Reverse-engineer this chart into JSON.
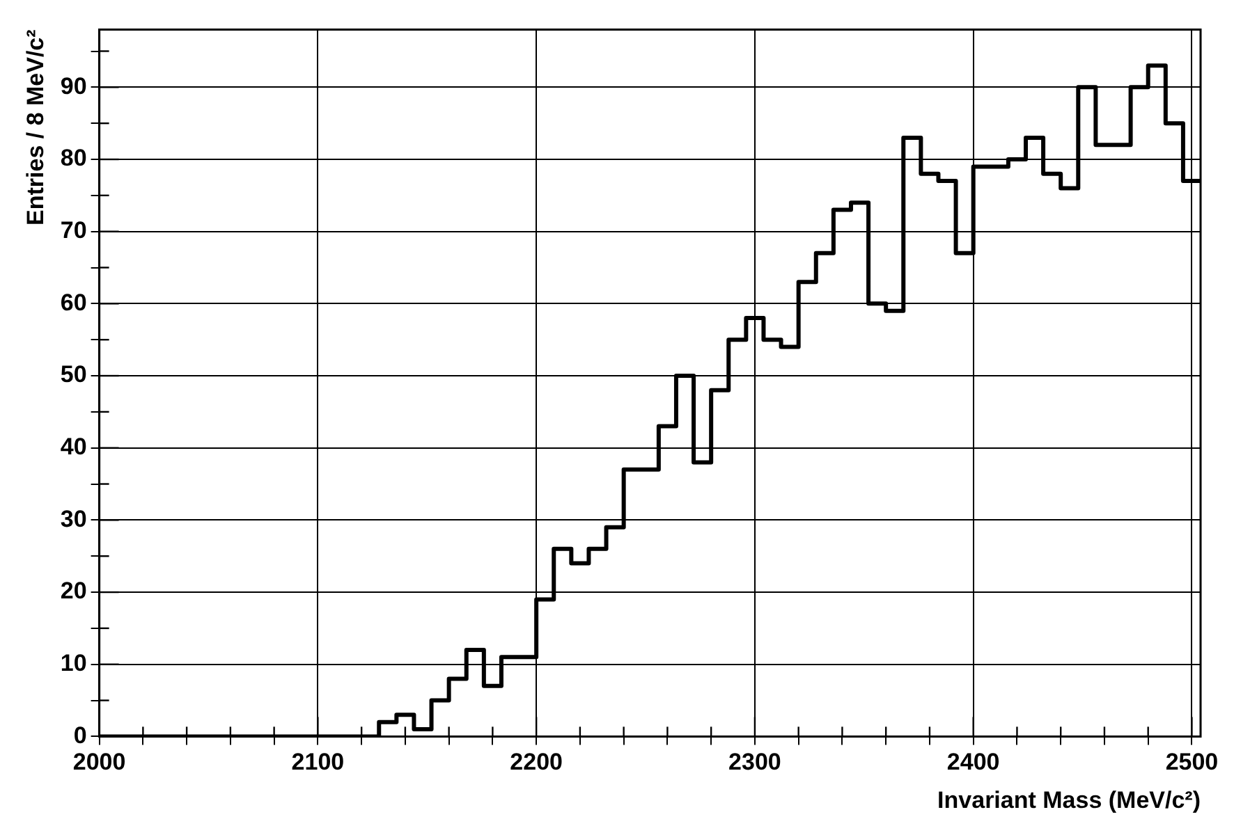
{
  "chart_data": {
    "type": "histogram",
    "xlabel": "Invariant Mass (MeV/c²)",
    "ylabel": "Entries / 8 MeV/c²",
    "bins": [
      2000,
      2008,
      2016,
      2024,
      2032,
      2040,
      2048,
      2056,
      2064,
      2072,
      2080,
      2088,
      2096,
      2104,
      2112,
      2120,
      2128,
      2136,
      2144,
      2152,
      2160,
      2168,
      2176,
      2184,
      2192,
      2200,
      2208,
      2216,
      2224,
      2232,
      2240,
      2248,
      2256,
      2264,
      2272,
      2280,
      2288,
      2296,
      2304,
      2312,
      2320,
      2328,
      2336,
      2344,
      2352,
      2360,
      2368,
      2376,
      2384,
      2392,
      2400,
      2408,
      2416,
      2424,
      2432,
      2440,
      2448,
      2456,
      2464,
      2472,
      2480,
      2488,
      2496,
      2504
    ],
    "values": [
      0,
      0,
      0,
      0,
      0,
      0,
      0,
      0,
      0,
      0,
      0,
      0,
      0,
      0,
      0,
      0,
      2,
      3,
      1,
      5,
      8,
      12,
      7,
      11,
      11,
      19,
      26,
      24,
      26,
      29,
      37,
      37,
      43,
      50,
      38,
      48,
      55,
      58,
      55,
      54,
      63,
      67,
      73,
      74,
      60,
      59,
      83,
      78,
      77,
      67,
      79,
      79,
      80,
      83,
      78,
      76,
      90,
      82,
      82,
      90,
      93,
      85,
      77
    ],
    "color": "#000000",
    "xlim": [
      2000,
      2504
    ],
    "ylim": [
      0,
      98
    ],
    "xticks": [
      2000,
      {
        "value": 2020,
        "label": null
      },
      {
        "value": 2040,
        "label": null
      },
      {
        "value": 2060,
        "label": null
      },
      {
        "value": 2080,
        "label": null
      },
      2100,
      {
        "value": 2120,
        "label": null
      },
      {
        "value": 2140,
        "label": null
      },
      {
        "value": 2160,
        "label": null
      },
      {
        "value": 2180,
        "label": null
      },
      2200,
      {
        "value": 2220,
        "label": null
      },
      {
        "value": 2240,
        "label": null
      },
      {
        "value": 2260,
        "label": null
      },
      {
        "value": 2280,
        "label": null
      },
      2300,
      {
        "value": 2320,
        "label": null
      },
      {
        "value": 2340,
        "label": null
      },
      {
        "value": 2360,
        "label": null
      },
      {
        "value": 2380,
        "label": null
      },
      2400,
      {
        "value": 2420,
        "label": null
      },
      {
        "value": 2440,
        "label": null
      },
      {
        "value": 2460,
        "label": null
      },
      {
        "value": 2480,
        "label": null
      },
      2500
    ],
    "yticks": [
      0,
      {
        "value": 5,
        "label": null
      },
      10,
      {
        "value": 15,
        "label": null
      },
      20,
      {
        "value": 25,
        "label": null
      },
      30,
      {
        "value": 35,
        "label": null
      },
      40,
      {
        "value": 45,
        "label": null
      },
      50,
      {
        "value": 55,
        "label": null
      },
      60,
      {
        "value": 65,
        "label": null
      },
      70,
      {
        "value": 75,
        "label": null
      },
      80,
      {
        "value": 85,
        "label": null
      },
      90,
      {
        "value": 95,
        "label": null
      }
    ],
    "grid": true
  }
}
